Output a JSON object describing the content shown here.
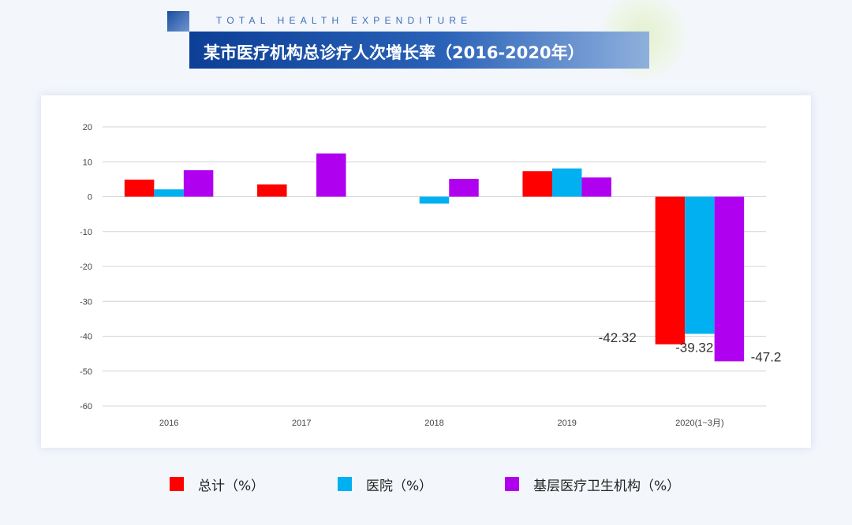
{
  "header": {
    "subtitle": "TOTAL HEALTH EXPENDITURE",
    "title": "某市医疗机构总诊疗人次增长率（2016-2020年）"
  },
  "chart_data": {
    "type": "bar",
    "title": "某市医疗机构总诊疗人次增长率（2016-2020年）",
    "categories": [
      "2016",
      "2017",
      "2018",
      "2019",
      "2020(1~3月)"
    ],
    "ylim": [
      -60,
      20
    ],
    "yticks": [
      20,
      10,
      0,
      -10,
      -20,
      -30,
      -40,
      -50,
      -60
    ],
    "ytick_labels": [
      "20",
      "10",
      "0",
      "-10",
      "-20",
      "-30",
      "-40",
      "-50",
      "-60"
    ],
    "grid": true,
    "legend_position": "bottom",
    "series": [
      {
        "name": "总计（%）",
        "color": "#ff0000",
        "values": [
          4.9,
          3.5,
          null,
          7.3,
          -42.32
        ]
      },
      {
        "name": "医院（%）",
        "color": "#00b0f0",
        "values": [
          2.1,
          null,
          -2.0,
          8.1,
          -39.32
        ]
      },
      {
        "name": "基层医疗卫生机构（%）",
        "color": "#b000f0",
        "values": [
          7.6,
          12.4,
          5.1,
          5.5,
          -47.2
        ]
      }
    ],
    "data_labels": [
      {
        "category_index": 4,
        "series_index": 0,
        "text": "-42.32"
      },
      {
        "category_index": 4,
        "series_index": 1,
        "text": "-39.32"
      },
      {
        "category_index": 4,
        "series_index": 2,
        "text": "-47.2"
      }
    ]
  },
  "legend": {
    "items": [
      {
        "label": "总计（%）",
        "color": "#ff0000"
      },
      {
        "label": "医院（%）",
        "color": "#00b0f0"
      },
      {
        "label": "基层医疗卫生机构（%）",
        "color": "#b000f0"
      }
    ]
  }
}
